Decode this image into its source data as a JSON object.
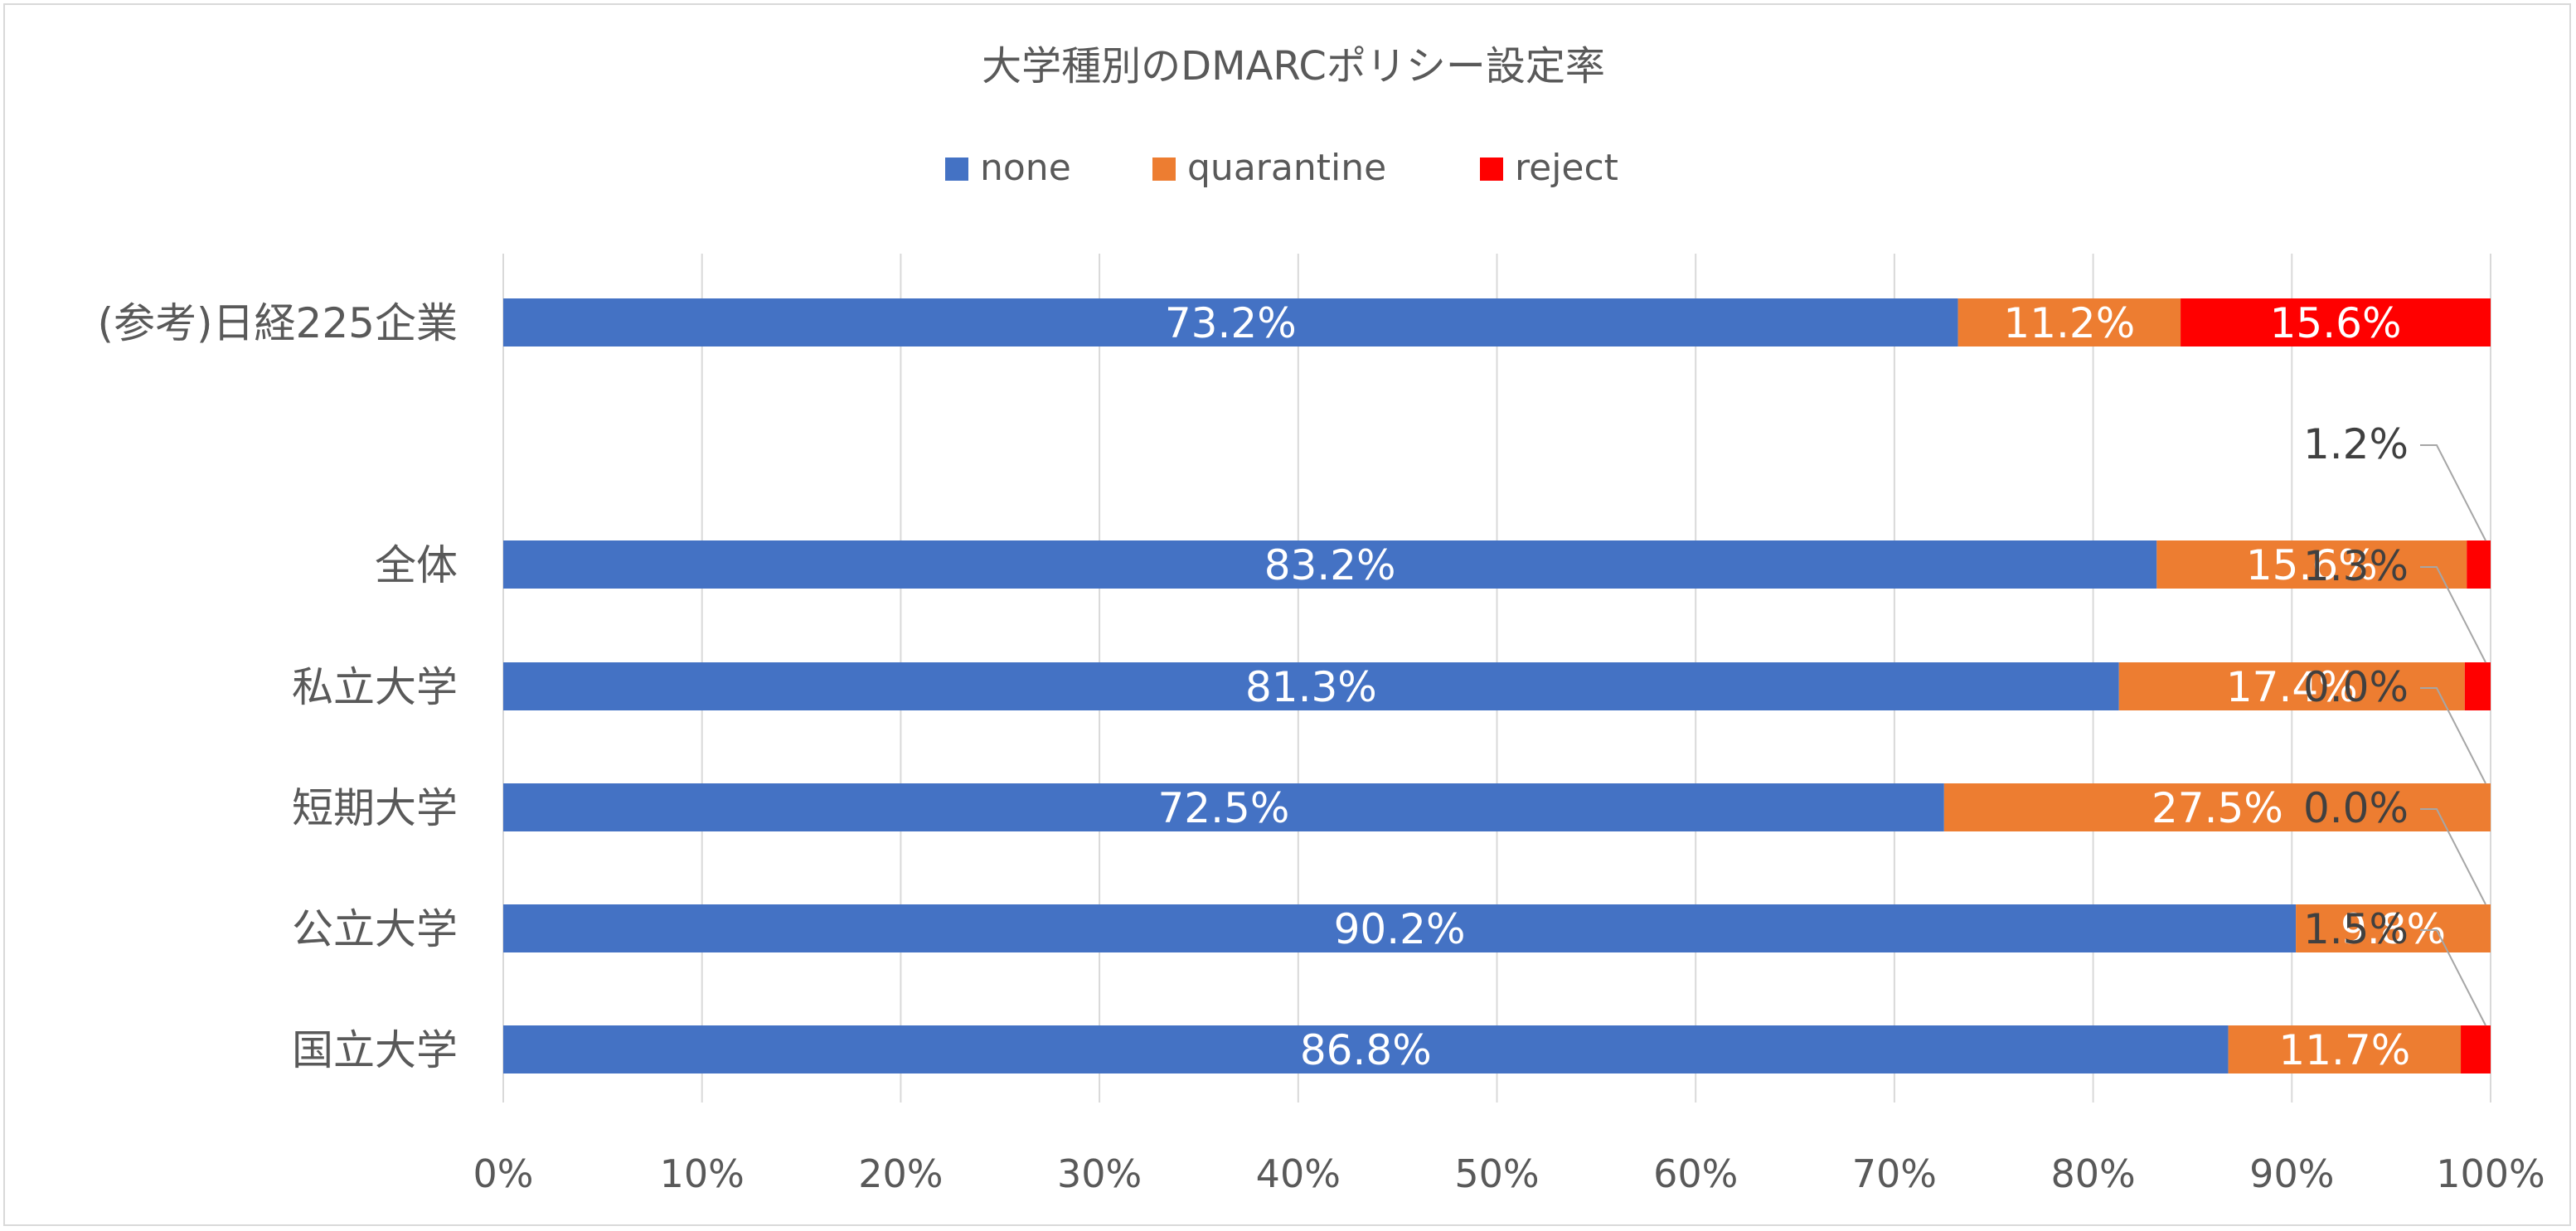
{
  "chart_data": {
    "type": "bar",
    "orientation": "horizontal",
    "stacked": "percent",
    "title": "大学種別のDMARCポリシー設定率",
    "categories": [
      "(参考)日経225企業",
      "全体",
      "私立大学",
      "短期大学",
      "公立大学",
      "国立大学"
    ],
    "series": [
      {
        "name": "none",
        "color": "#4472C4",
        "values": [
          73.2,
          83.2,
          81.3,
          72.5,
          90.2,
          86.8
        ],
        "labels": [
          "73.2%",
          "83.2%",
          "81.3%",
          "72.5%",
          "90.2%",
          "86.8%"
        ]
      },
      {
        "name": "quarantine",
        "color": "#ED7D31",
        "values": [
          11.2,
          15.6,
          17.4,
          27.5,
          9.8,
          11.7
        ],
        "labels": [
          "11.2%",
          "15.6%",
          "17.4%",
          "27.5%",
          "9.8%",
          "11.7%"
        ]
      },
      {
        "name": "reject",
        "color": "#FF0000",
        "values": [
          15.6,
          1.2,
          1.3,
          0.0,
          0.0,
          1.5
        ],
        "labels": [
          "15.6%",
          "1.2%",
          "1.3%",
          "0.0%",
          "0.0%",
          "1.5%"
        ]
      }
    ],
    "xlim": [
      0,
      100
    ],
    "x_ticks": [
      "0%",
      "10%",
      "20%",
      "30%",
      "40%",
      "50%",
      "60%",
      "70%",
      "80%",
      "90%",
      "100%"
    ],
    "xlabel": "",
    "ylabel": "",
    "grid": true,
    "legend_position": "top"
  }
}
